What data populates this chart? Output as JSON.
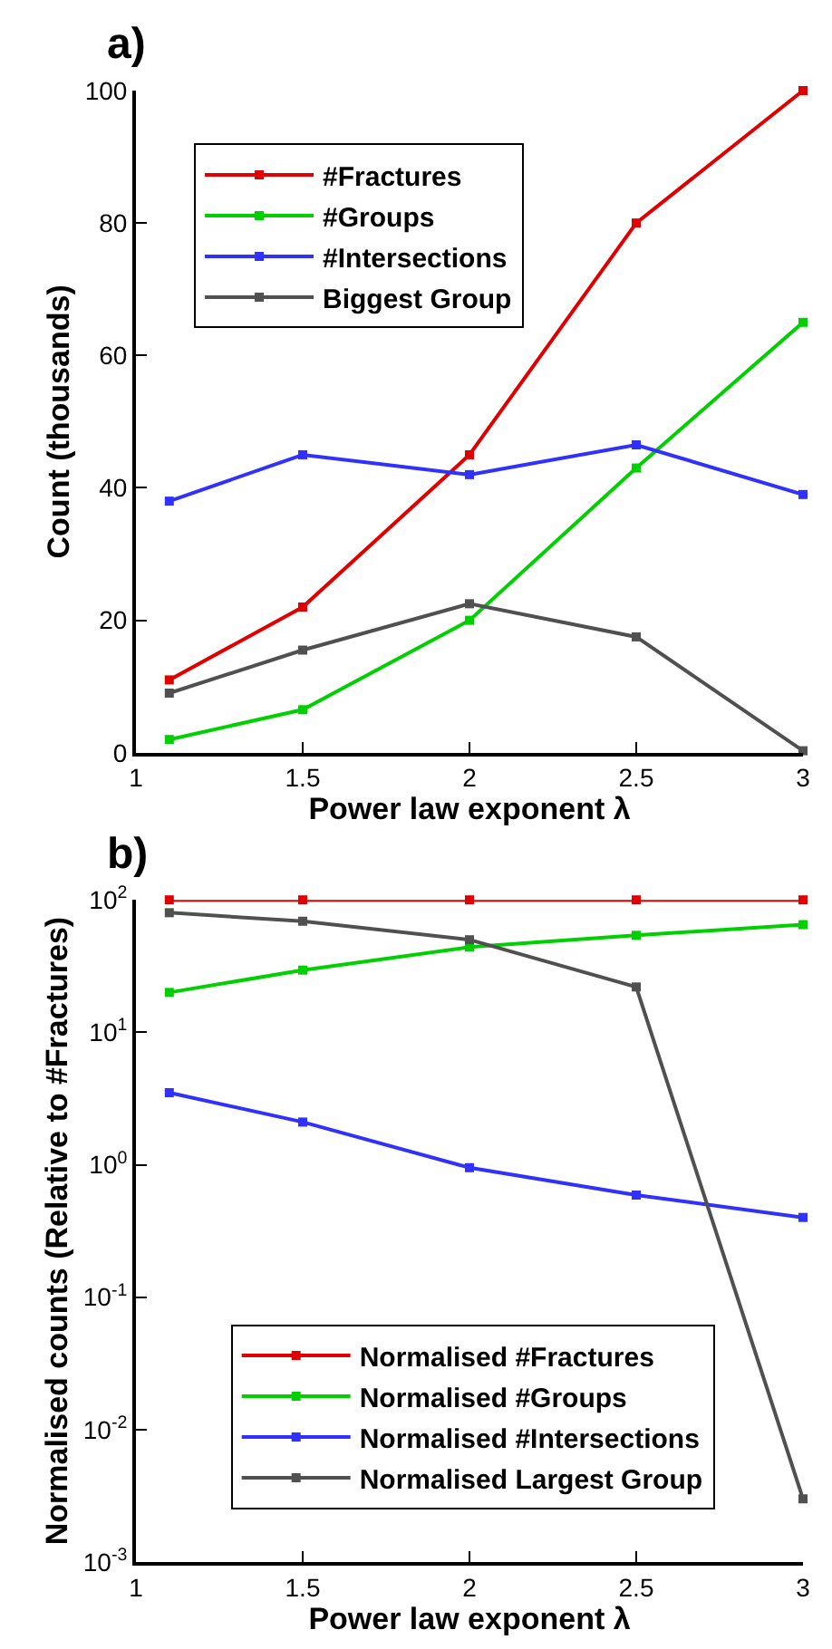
{
  "chart_data": [
    {
      "type": "line",
      "title": "a)",
      "xlabel": "Power law exponent λ",
      "ylabel": "Count (thousands)",
      "x": [
        1.1,
        1.5,
        2,
        2.5,
        3
      ],
      "series": [
        {
          "name": "#Fractures",
          "color": "#e00000",
          "values": [
            11,
            22,
            45,
            80,
            100
          ]
        },
        {
          "name": "#Groups",
          "color": "#00d000",
          "values": [
            2,
            6.5,
            20,
            43,
            65
          ]
        },
        {
          "name": "#Intersections",
          "color": "#3030ff",
          "values": [
            38,
            45,
            42,
            46.5,
            39
          ]
        },
        {
          "name": "Biggest Group",
          "color": "#505050",
          "values": [
            9,
            15.5,
            22.5,
            17.5,
            0.3
          ]
        }
      ],
      "xlim": [
        1,
        3
      ],
      "xticks": [
        1,
        1.5,
        2,
        2.5,
        3
      ],
      "ylim": [
        0,
        100
      ],
      "yticks": [
        0,
        20,
        40,
        60,
        80,
        100
      ],
      "legend": "top left",
      "marker": "square",
      "line_style": "solid"
    },
    {
      "type": "line",
      "title": "b)",
      "xlabel": "Power law exponent λ",
      "ylabel": "Normalised counts (Relative to #Fractures)",
      "x": [
        1.1,
        1.5,
        2,
        2.5,
        3
      ],
      "series": [
        {
          "name": "Normalised #Fractures",
          "color": "#e00000",
          "values": [
            100,
            100,
            100,
            100,
            100
          ]
        },
        {
          "name": "Normalised #Groups",
          "color": "#00d000",
          "values": [
            20,
            29.5,
            44,
            54,
            65
          ]
        },
        {
          "name": "Normalised #Intersections",
          "color": "#3030ff",
          "values": [
            3.5,
            2.1,
            0.95,
            0.59,
            0.4
          ]
        },
        {
          "name": "Normalised Largest Group",
          "color": "#505050",
          "values": [
            80,
            69,
            50,
            22,
            0.003
          ]
        }
      ],
      "log": "y",
      "xlim": [
        1,
        3
      ],
      "xticks": [
        1,
        1.5,
        2,
        2.5,
        3
      ],
      "ylim": [
        0.001,
        100
      ],
      "yticks": [
        {
          "value": 0.001,
          "label": "10$^{-3}$"
        },
        {
          "value": 0.01,
          "label": "10$^{-2}$"
        },
        {
          "value": 0.1,
          "label": "10$^{-1}$"
        },
        {
          "value": 1,
          "label": "10$^{0}$"
        },
        {
          "value": 10,
          "label": "10$^{1}$"
        },
        {
          "value": 100,
          "label": "10$^{2}$"
        }
      ],
      "legend": "bottom",
      "marker": "square",
      "line_style": "solid"
    }
  ]
}
